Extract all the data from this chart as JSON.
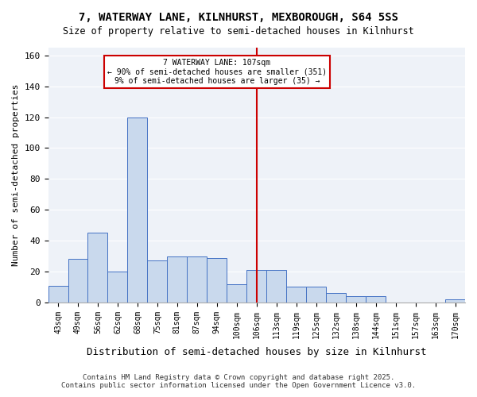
{
  "title1": "7, WATERWAY LANE, KILNHURST, MEXBOROUGH, S64 5SS",
  "title2": "Size of property relative to semi-detached houses in Kilnhurst",
  "xlabel": "Distribution of semi-detached houses by size in Kilnhurst",
  "ylabel": "Number of semi-detached properties",
  "categories": [
    "43sqm",
    "49sqm",
    "56sqm",
    "62sqm",
    "68sqm",
    "75sqm",
    "81sqm",
    "87sqm",
    "94sqm",
    "100sqm",
    "106sqm",
    "113sqm",
    "119sqm",
    "125sqm",
    "132sqm",
    "138sqm",
    "144sqm",
    "151sqm",
    "157sqm",
    "163sqm",
    "170sqm"
  ],
  "values": [
    11,
    28,
    45,
    20,
    120,
    27,
    30,
    30,
    29,
    12,
    21,
    21,
    10,
    10,
    6,
    4,
    4,
    0,
    0,
    0,
    2
  ],
  "bar_color": "#c9d9ed",
  "bar_edge_color": "#4472c4",
  "highlight_index": 10,
  "annotation_title": "7 WATERWAY LANE: 107sqm",
  "annotation_line1": "← 90% of semi-detached houses are smaller (351)",
  "annotation_line2": "9% of semi-detached houses are larger (35) →",
  "vline_color": "#cc0000",
  "annotation_box_color": "#cc0000",
  "footer1": "Contains HM Land Registry data © Crown copyright and database right 2025.",
  "footer2": "Contains public sector information licensed under the Open Government Licence v3.0.",
  "ylim": [
    0,
    165
  ],
  "yticks": [
    0,
    20,
    40,
    60,
    80,
    100,
    120,
    140,
    160
  ]
}
